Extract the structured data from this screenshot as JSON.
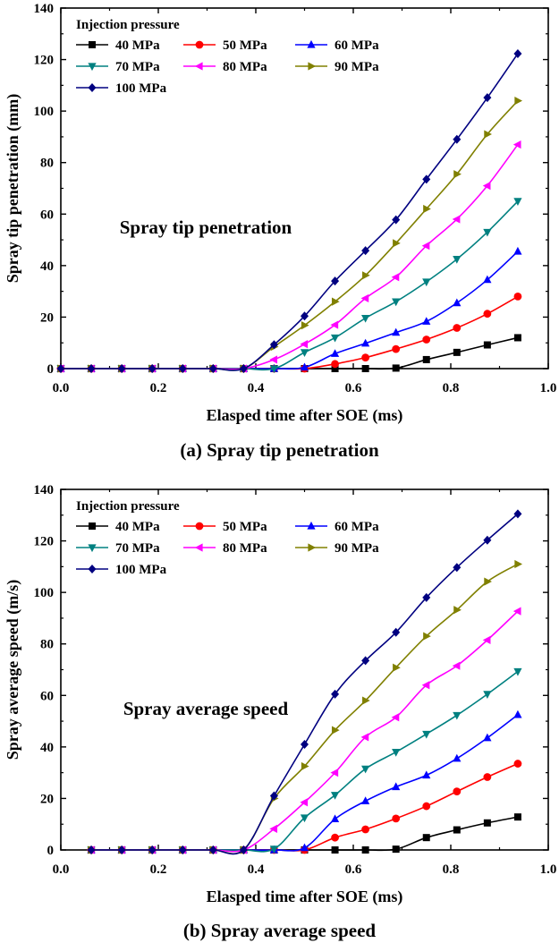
{
  "colors": {
    "40 MPa": "#000000",
    "50 MPa": "#ff0000",
    "60 MPa": "#0000ff",
    "70 MPa": "#008080",
    "80 MPa": "#ff00ff",
    "90 MPa": "#808000",
    "100 MPa": "#000080"
  },
  "markers": {
    "40 MPa": "square",
    "50 MPa": "circle",
    "60 MPa": "triangle-up",
    "70 MPa": "triangle-down",
    "80 MPa": "triangle-left",
    "90 MPa": "triangle-right",
    "100 MPa": "diamond"
  },
  "chart_data": [
    {
      "type": "line",
      "caption": "(a) Spray tip penetration",
      "annotation": "Spray tip penetration",
      "xlabel": "Elasped time after SOE (ms)",
      "ylabel": "Spray tip penetration (mm)",
      "xlim": [
        0.0,
        1.0
      ],
      "ylim": [
        0,
        140
      ],
      "xticks": [
        "0.0",
        "0.2",
        "0.4",
        "0.6",
        "0.8",
        "1.0"
      ],
      "yticks": [
        "0",
        "20",
        "40",
        "60",
        "80",
        "100",
        "120",
        "140"
      ],
      "legend_title": "Injection pressure",
      "legend_position": "top-left",
      "grid": false,
      "x": [
        0.0,
        0.0625,
        0.125,
        0.1875,
        0.25,
        0.3125,
        0.375,
        0.4375,
        0.5,
        0.5625,
        0.625,
        0.6875,
        0.75,
        0.8125,
        0.875,
        0.9375
      ],
      "series": [
        {
          "name": "40 MPa",
          "values": [
            0,
            0,
            0,
            0,
            0,
            0,
            0,
            0,
            0,
            0,
            0,
            0.2,
            3.5,
            6.3,
            9.2,
            12
          ]
        },
        {
          "name": "50 MPa",
          "values": [
            0,
            0,
            0,
            0,
            0,
            0,
            0,
            0,
            0,
            1.8,
            4.3,
            7.6,
            11.3,
            15.8,
            21.3,
            28
          ]
        },
        {
          "name": "60 MPa",
          "values": [
            0,
            0,
            0,
            0,
            0,
            0,
            0,
            0,
            0.5,
            5.8,
            9.8,
            14,
            18.3,
            25.5,
            34.5,
            45.5
          ]
        },
        {
          "name": "70 MPa",
          "values": [
            0,
            0,
            0,
            0,
            0,
            0,
            0,
            0,
            6.3,
            12,
            19.6,
            26,
            33.7,
            42.5,
            53,
            65
          ]
        },
        {
          "name": "80 MPa",
          "values": [
            0,
            0,
            0,
            0,
            0,
            0,
            0,
            3.5,
            9.5,
            17,
            27.3,
            35.5,
            47.7,
            58,
            71,
            87
          ]
        },
        {
          "name": "90 MPa",
          "values": [
            0,
            0,
            0,
            0,
            0,
            0,
            0,
            8.5,
            16.8,
            26,
            36.2,
            48.7,
            62,
            75.5,
            91,
            104
          ]
        },
        {
          "name": "100 MPa",
          "values": [
            0,
            0,
            0,
            0,
            0,
            0,
            0,
            9.3,
            20.4,
            34,
            45.8,
            57.8,
            73.5,
            89,
            105.2,
            122.3
          ]
        }
      ]
    },
    {
      "type": "line",
      "caption": "(b) Spray average speed",
      "annotation": "Spray average speed",
      "xlabel": "Elasped time after SOE (ms)",
      "ylabel": "Spray average speed (m/s)",
      "xlim": [
        0.0,
        1.0
      ],
      "ylim": [
        0,
        140
      ],
      "xticks": [
        "0.0",
        "0.2",
        "0.4",
        "0.6",
        "0.8",
        "1.0"
      ],
      "yticks": [
        "0",
        "20",
        "40",
        "60",
        "80",
        "100",
        "120",
        "140"
      ],
      "legend_title": "Injection pressure",
      "legend_position": "top-left",
      "grid": false,
      "x": [
        0.0625,
        0.125,
        0.1875,
        0.25,
        0.3125,
        0.375,
        0.4375,
        0.5,
        0.5625,
        0.625,
        0.6875,
        0.75,
        0.8125,
        0.875,
        0.9375
      ],
      "series": [
        {
          "name": "40 MPa",
          "values": [
            0,
            0,
            0,
            0,
            0,
            0,
            0,
            0,
            0,
            0,
            0.3,
            4.8,
            7.8,
            10.5,
            12.8
          ]
        },
        {
          "name": "50 MPa",
          "values": [
            0,
            0,
            0,
            0,
            0,
            0,
            0,
            0,
            4.8,
            8,
            12.2,
            17,
            22.7,
            28.3,
            33.5
          ]
        },
        {
          "name": "60 MPa",
          "values": [
            0,
            0,
            0,
            0,
            0,
            0,
            0,
            0.8,
            12,
            19,
            24.5,
            29,
            35.5,
            43.5,
            52.5
          ]
        },
        {
          "name": "70 MPa",
          "values": [
            0,
            0,
            0,
            0,
            0,
            0,
            0.4,
            12.5,
            21.3,
            31.5,
            38,
            45,
            52.3,
            60.5,
            69.3
          ]
        },
        {
          "name": "80 MPa",
          "values": [
            0,
            0,
            0,
            0,
            0,
            0,
            8.2,
            18.5,
            30,
            43.8,
            51.5,
            64,
            71.5,
            81.5,
            92.7
          ]
        },
        {
          "name": "90 MPa",
          "values": [
            0,
            0,
            0,
            0,
            0,
            0,
            20,
            32.5,
            46.5,
            58,
            70.8,
            83,
            93.2,
            104.2,
            111
          ]
        },
        {
          "name": "100 MPa",
          "values": [
            0,
            0,
            0,
            0,
            0,
            0,
            21,
            41,
            60.5,
            73.5,
            84.5,
            98,
            109.7,
            120.3,
            130.5
          ]
        }
      ]
    }
  ]
}
